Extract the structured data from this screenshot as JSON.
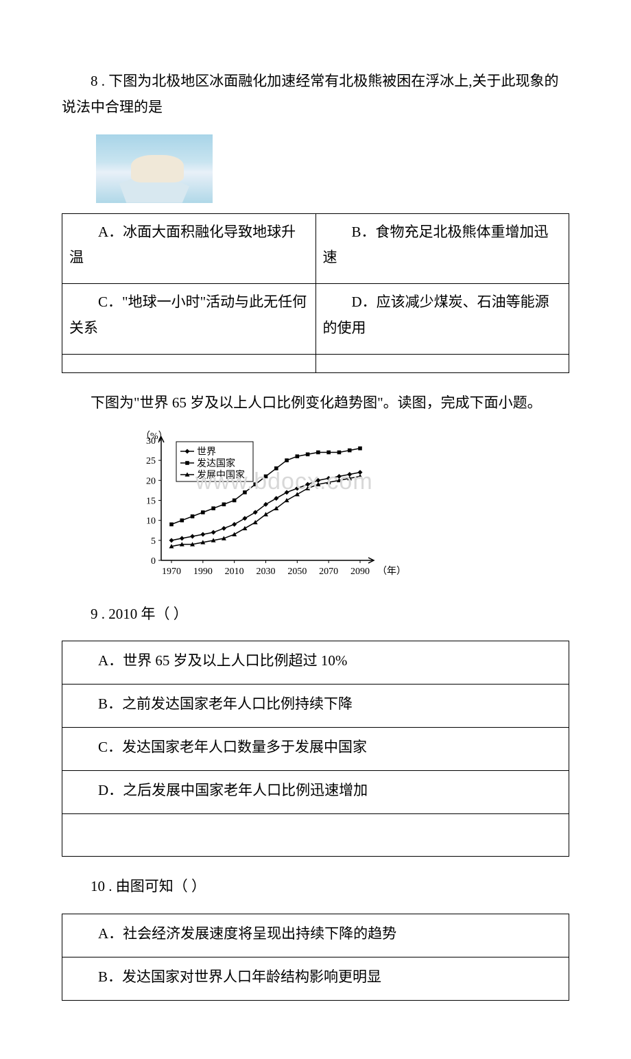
{
  "q8": {
    "text": "8 . 下图为北极地区冰面融化加速经常有北极熊被困在浮冰上,关于此现象的说法中合理的是",
    "options": {
      "a": "A．冰面大面积融化导致地球升温",
      "b": "B．食物充足北极熊体重增加迅速",
      "c": "C．\"地球一小时\"活动与此无任何关系",
      "d": "D．应该减少煤炭、石油等能源的使用"
    }
  },
  "chart_intro": "下图为\"世界 65 岁及以上人口比例变化趋势图\"。读图，完成下面小题。",
  "chart": {
    "type": "line",
    "watermark": "www.bdocx.com",
    "y_axis_label": "（%）",
    "x_axis_label": "（年）",
    "ylim": [
      0,
      30
    ],
    "ytick_step": 5,
    "x_categories": [
      "1970",
      "1990",
      "2010",
      "2030",
      "2050",
      "2070",
      "2090"
    ],
    "legend": [
      {
        "label": "世界",
        "marker": "diamond"
      },
      {
        "label": "发达国家",
        "marker": "square"
      },
      {
        "label": "发展中国家",
        "marker": "triangle"
      }
    ],
    "series": {
      "world": [
        5,
        5.5,
        6,
        6.5,
        7,
        8,
        9,
        10.5,
        12,
        14,
        15.5,
        17,
        18,
        19,
        20,
        20.5,
        21,
        21.5,
        22
      ],
      "developed": [
        9,
        10,
        11,
        12,
        13,
        14,
        15,
        17,
        19,
        21,
        23,
        25,
        26,
        26.5,
        27,
        27,
        27,
        27.5,
        28
      ],
      "developing": [
        3.5,
        4,
        4,
        4.5,
        5,
        5.5,
        6.5,
        8,
        9.5,
        11.5,
        13,
        15,
        16.5,
        18,
        19,
        19.5,
        20,
        20.5,
        21
      ]
    },
    "colors": {
      "line": "#000000",
      "axis": "#000000",
      "background": "#ffffff",
      "watermark": "#d8d8d8"
    },
    "line_width": 1.5,
    "marker_size": 5,
    "label_fontsize": 14
  },
  "q9": {
    "text": "9 . 2010 年（ ）",
    "options": {
      "a": "A．世界 65 岁及以上人口比例超过 10%",
      "b": "B．之前发达国家老年人口比例持续下降",
      "c": "C．发达国家老年人口数量多于发展中国家",
      "d": "D．之后发展中国家老年人口比例迅速增加"
    }
  },
  "q10": {
    "text": "10 . 由图可知（ ）",
    "options": {
      "a": "A．社会经济发展速度将呈现出持续下降的趋势",
      "b": "B．发达国家对世界人口年龄结构影响更明显"
    }
  }
}
